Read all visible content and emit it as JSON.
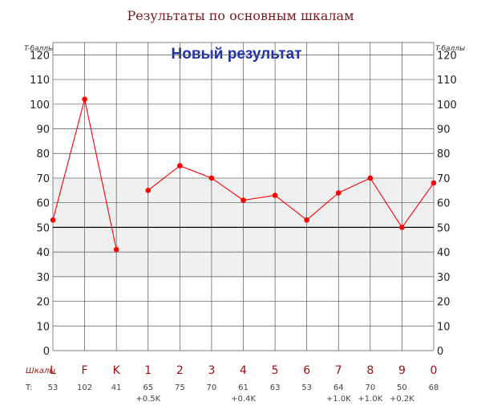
{
  "chart_data": {
    "type": "line",
    "title": "Результаты по основным шкалам",
    "subtitle": "Новый результат",
    "ylabel_left": "T-баллы",
    "ylabel_right": "T-баллы",
    "ylim": [
      0,
      125
    ],
    "yticks": [
      0,
      10,
      20,
      30,
      40,
      50,
      60,
      70,
      80,
      90,
      100,
      110,
      120
    ],
    "norm_band": [
      30,
      70
    ],
    "reference_line": 50,
    "grid": true,
    "scales_caption": "Шкалы",
    "t_caption": "T:",
    "categories": [
      "L",
      "F",
      "K",
      "1",
      "2",
      "3",
      "4",
      "5",
      "6",
      "7",
      "8",
      "9",
      "0"
    ],
    "series": [
      {
        "values": [
          53,
          102,
          41,
          65,
          75,
          70,
          61,
          63,
          53,
          64,
          70,
          50,
          68
        ],
        "color": "#ff0000"
      }
    ],
    "line_breaks_after": [
      2
    ],
    "t_values": [
      "53",
      "102",
      "41",
      "65",
      "75",
      "70",
      "61",
      "63",
      "53",
      "64",
      "70",
      "50",
      "68"
    ],
    "t_corrections": [
      "",
      "",
      "",
      "+0.5K",
      "",
      "",
      "+0.4K",
      "",
      "",
      "+1.0K",
      "+1.0K",
      "+0.2K",
      ""
    ]
  }
}
